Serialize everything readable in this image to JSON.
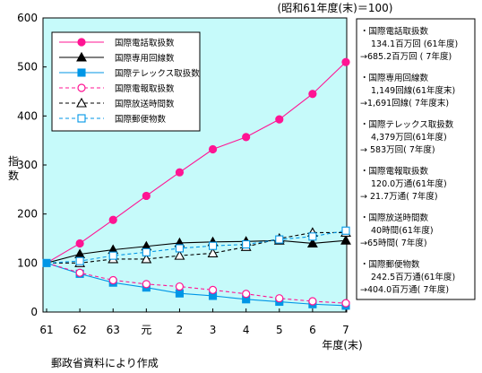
{
  "chart_data": {
    "type": "line",
    "title": "",
    "subtitle": "(昭和61年度(末)＝100)",
    "ylabel": "指数",
    "xlabel": "年度(末)",
    "ylim": [
      0,
      600
    ],
    "yticks": [
      "0",
      "100",
      "200",
      "300",
      "400",
      "500",
      "600"
    ],
    "categories": [
      "61",
      "62",
      "63",
      "元",
      "2",
      "3",
      "4",
      "5",
      "6",
      "7"
    ],
    "grid": false,
    "legend_position": "top-left",
    "series": [
      {
        "name": "国際電話取扱数",
        "color": "#ff1493",
        "marker": "circle-filled",
        "dash": "solid",
        "values": [
          100,
          140,
          188,
          237,
          285,
          332,
          357,
          393,
          445,
          510
        ]
      },
      {
        "name": "国際専用回線数",
        "color": "#000000",
        "marker": "triangle-filled",
        "dash": "solid",
        "values": [
          100,
          118,
          127,
          134,
          141,
          143,
          144,
          146,
          140,
          146
        ]
      },
      {
        "name": "国際テレックス取扱数",
        "color": "#0096e6",
        "marker": "square-filled",
        "dash": "solid",
        "values": [
          100,
          78,
          60,
          50,
          38,
          33,
          26,
          21,
          16,
          13
        ]
      },
      {
        "name": "国際電報取扱数",
        "color": "#ff1493",
        "marker": "circle-open",
        "dash": "dashed",
        "values": [
          100,
          80,
          65,
          57,
          52,
          45,
          37,
          28,
          22,
          18
        ]
      },
      {
        "name": "国際放送時間数",
        "color": "#000000",
        "marker": "triangle-open",
        "dash": "dashed",
        "values": [
          100,
          100,
          108,
          108,
          115,
          120,
          133,
          150,
          162,
          162
        ]
      },
      {
        "name": "国際郵便物数",
        "color": "#0096e6",
        "marker": "square-open",
        "dash": "dashed",
        "values": [
          100,
          104,
          115,
          122,
          130,
          135,
          138,
          148,
          154,
          166
        ]
      }
    ]
  },
  "side_notes": [
    {
      "title": "・国際電話取扱数",
      "lines": [
        "134.1百万回 (61年度)",
        "→685.2百万回 ( 7年度)"
      ]
    },
    {
      "title": "・国際専用回線数",
      "lines": [
        "1,149回線(61年度末)",
        "→1,691回線( 7年度末)"
      ]
    },
    {
      "title": "・国際テレックス取扱数",
      "lines": [
        "4,379万回(61年度)",
        "→  583万回( 7年度)"
      ]
    },
    {
      "title": "・国際電報取扱数",
      "lines": [
        "120.0万通(61年度)",
        "→ 21.7万通( 7年度)"
      ]
    },
    {
      "title": "・国際放送時間数",
      "lines": [
        "40時間(61年度)",
        "→65時間( 7年度)"
      ]
    },
    {
      "title": "・国際郵便物数",
      "lines": [
        "242.5百万通(61年度)",
        "→404.0百万通( 7年度)"
      ]
    }
  ],
  "source_note": "郵政省資料により作成"
}
